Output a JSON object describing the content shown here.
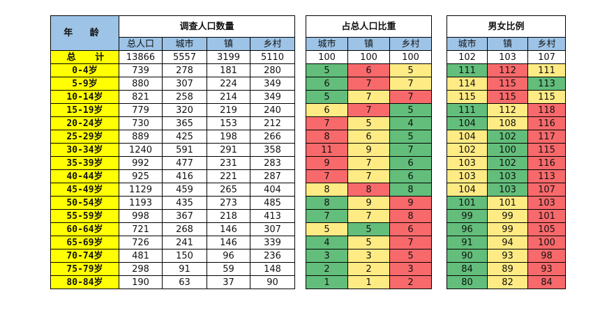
{
  "header": {
    "age": "年 龄",
    "groups": [
      "调查人口数量",
      "占总人口比重",
      "男女比例"
    ],
    "sub_population": [
      "总人口",
      "城市",
      "镇",
      "乡村"
    ],
    "sub_share": [
      "城市",
      "镇",
      "乡村"
    ],
    "sub_ratio": [
      "城市",
      "镇",
      "乡村"
    ]
  },
  "colors": {
    "green": "#63be7b",
    "yellow": "#ffeb84",
    "red": "#f8696b",
    "age_bg": "#ffff00",
    "header_bg": "#9dc3e6",
    "title_red": "#c00000"
  },
  "rows": [
    {
      "age": "总 计",
      "total": 13866,
      "city": 5557,
      "town": 3199,
      "rural": 5110,
      "share": [
        100,
        100,
        100
      ],
      "share_color": [
        "w",
        "w",
        "w"
      ],
      "ratio": [
        102,
        103,
        107
      ],
      "ratio_color": [
        "w",
        "w",
        "w"
      ]
    },
    {
      "age": "0-4岁",
      "total": 739,
      "city": 278,
      "town": 181,
      "rural": 280,
      "share": [
        5,
        6,
        5
      ],
      "share_color": [
        "g",
        "r",
        "y"
      ],
      "ratio": [
        111,
        112,
        111
      ],
      "ratio_color": [
        "g",
        "r",
        "y"
      ]
    },
    {
      "age": "5-9岁",
      "total": 880,
      "city": 307,
      "town": 224,
      "rural": 349,
      "share": [
        6,
        7,
        7
      ],
      "share_color": [
        "g",
        "r",
        "y"
      ],
      "ratio": [
        114,
        115,
        113
      ],
      "ratio_color": [
        "y",
        "r",
        "g"
      ]
    },
    {
      "age": "10-14岁",
      "total": 821,
      "city": 258,
      "town": 214,
      "rural": 349,
      "share": [
        5,
        7,
        7
      ],
      "share_color": [
        "g",
        "y",
        "r"
      ],
      "ratio": [
        115,
        115,
        115
      ],
      "ratio_color": [
        "y",
        "r",
        "y"
      ]
    },
    {
      "age": "15-19岁",
      "total": 779,
      "city": 320,
      "town": 219,
      "rural": 240,
      "share": [
        6,
        7,
        5
      ],
      "share_color": [
        "y",
        "r",
        "g"
      ],
      "ratio": [
        111,
        112,
        118
      ],
      "ratio_color": [
        "g",
        "y",
        "r"
      ]
    },
    {
      "age": "20-24岁",
      "total": 730,
      "city": 365,
      "town": 153,
      "rural": 212,
      "share": [
        7,
        5,
        4
      ],
      "share_color": [
        "r",
        "y",
        "g"
      ],
      "ratio": [
        104,
        108,
        116
      ],
      "ratio_color": [
        "g",
        "y",
        "r"
      ]
    },
    {
      "age": "25-29岁",
      "total": 889,
      "city": 425,
      "town": 198,
      "rural": 266,
      "share": [
        8,
        6,
        5
      ],
      "share_color": [
        "r",
        "y",
        "g"
      ],
      "ratio": [
        104,
        102,
        117
      ],
      "ratio_color": [
        "y",
        "g",
        "r"
      ]
    },
    {
      "age": "30-34岁",
      "total": 1240,
      "city": 591,
      "town": 291,
      "rural": 358,
      "share": [
        11,
        9,
        7
      ],
      "share_color": [
        "r",
        "y",
        "g"
      ],
      "ratio": [
        102,
        100,
        115
      ],
      "ratio_color": [
        "y",
        "g",
        "r"
      ]
    },
    {
      "age": "35-39岁",
      "total": 992,
      "city": 477,
      "town": 231,
      "rural": 283,
      "share": [
        9,
        7,
        6
      ],
      "share_color": [
        "r",
        "y",
        "g"
      ],
      "ratio": [
        103,
        102,
        116
      ],
      "ratio_color": [
        "y",
        "g",
        "r"
      ]
    },
    {
      "age": "40-44岁",
      "total": 925,
      "city": 416,
      "town": 221,
      "rural": 287,
      "share": [
        7,
        7,
        6
      ],
      "share_color": [
        "r",
        "y",
        "g"
      ],
      "ratio": [
        103,
        103,
        113
      ],
      "ratio_color": [
        "y",
        "g",
        "r"
      ]
    },
    {
      "age": "45-49岁",
      "total": 1129,
      "city": 459,
      "town": 265,
      "rural": 404,
      "share": [
        8,
        8,
        8
      ],
      "share_color": [
        "y",
        "r",
        "g"
      ],
      "ratio": [
        104,
        103,
        107
      ],
      "ratio_color": [
        "y",
        "g",
        "r"
      ]
    },
    {
      "age": "50-54岁",
      "total": 1193,
      "city": 435,
      "town": 273,
      "rural": 485,
      "share": [
        8,
        9,
        9
      ],
      "share_color": [
        "g",
        "y",
        "r"
      ],
      "ratio": [
        101,
        101,
        103
      ],
      "ratio_color": [
        "g",
        "y",
        "r"
      ]
    },
    {
      "age": "55-59岁",
      "total": 998,
      "city": 367,
      "town": 218,
      "rural": 413,
      "share": [
        7,
        7,
        8
      ],
      "share_color": [
        "g",
        "y",
        "r"
      ],
      "ratio": [
        99,
        99,
        101
      ],
      "ratio_color": [
        "g",
        "y",
        "r"
      ]
    },
    {
      "age": "60-64岁",
      "total": 721,
      "city": 268,
      "town": 146,
      "rural": 307,
      "share": [
        5,
        5,
        6
      ],
      "share_color": [
        "y",
        "g",
        "r"
      ],
      "ratio": [
        96,
        99,
        105
      ],
      "ratio_color": [
        "g",
        "y",
        "r"
      ]
    },
    {
      "age": "65-69岁",
      "total": 726,
      "city": 241,
      "town": 146,
      "rural": 339,
      "share": [
        4,
        5,
        7
      ],
      "share_color": [
        "g",
        "y",
        "r"
      ],
      "ratio": [
        91,
        94,
        100
      ],
      "ratio_color": [
        "g",
        "y",
        "r"
      ]
    },
    {
      "age": "70-74岁",
      "total": 481,
      "city": 150,
      "town": 96,
      "rural": 236,
      "share": [
        3,
        3,
        5
      ],
      "share_color": [
        "g",
        "y",
        "r"
      ],
      "ratio": [
        90,
        93,
        98
      ],
      "ratio_color": [
        "g",
        "y",
        "r"
      ]
    },
    {
      "age": "75-79岁",
      "total": 298,
      "city": 91,
      "town": 59,
      "rural": 148,
      "share": [
        2,
        2,
        3
      ],
      "share_color": [
        "g",
        "y",
        "r"
      ],
      "ratio": [
        84,
        89,
        93
      ],
      "ratio_color": [
        "g",
        "y",
        "r"
      ]
    },
    {
      "age": "80-84岁",
      "total": 190,
      "city": 63,
      "town": 37,
      "rural": 90,
      "share": [
        1,
        1,
        2
      ],
      "share_color": [
        "g",
        "y",
        "r"
      ],
      "ratio": [
        80,
        82,
        84
      ],
      "ratio_color": [
        "g",
        "y",
        "r"
      ]
    }
  ]
}
